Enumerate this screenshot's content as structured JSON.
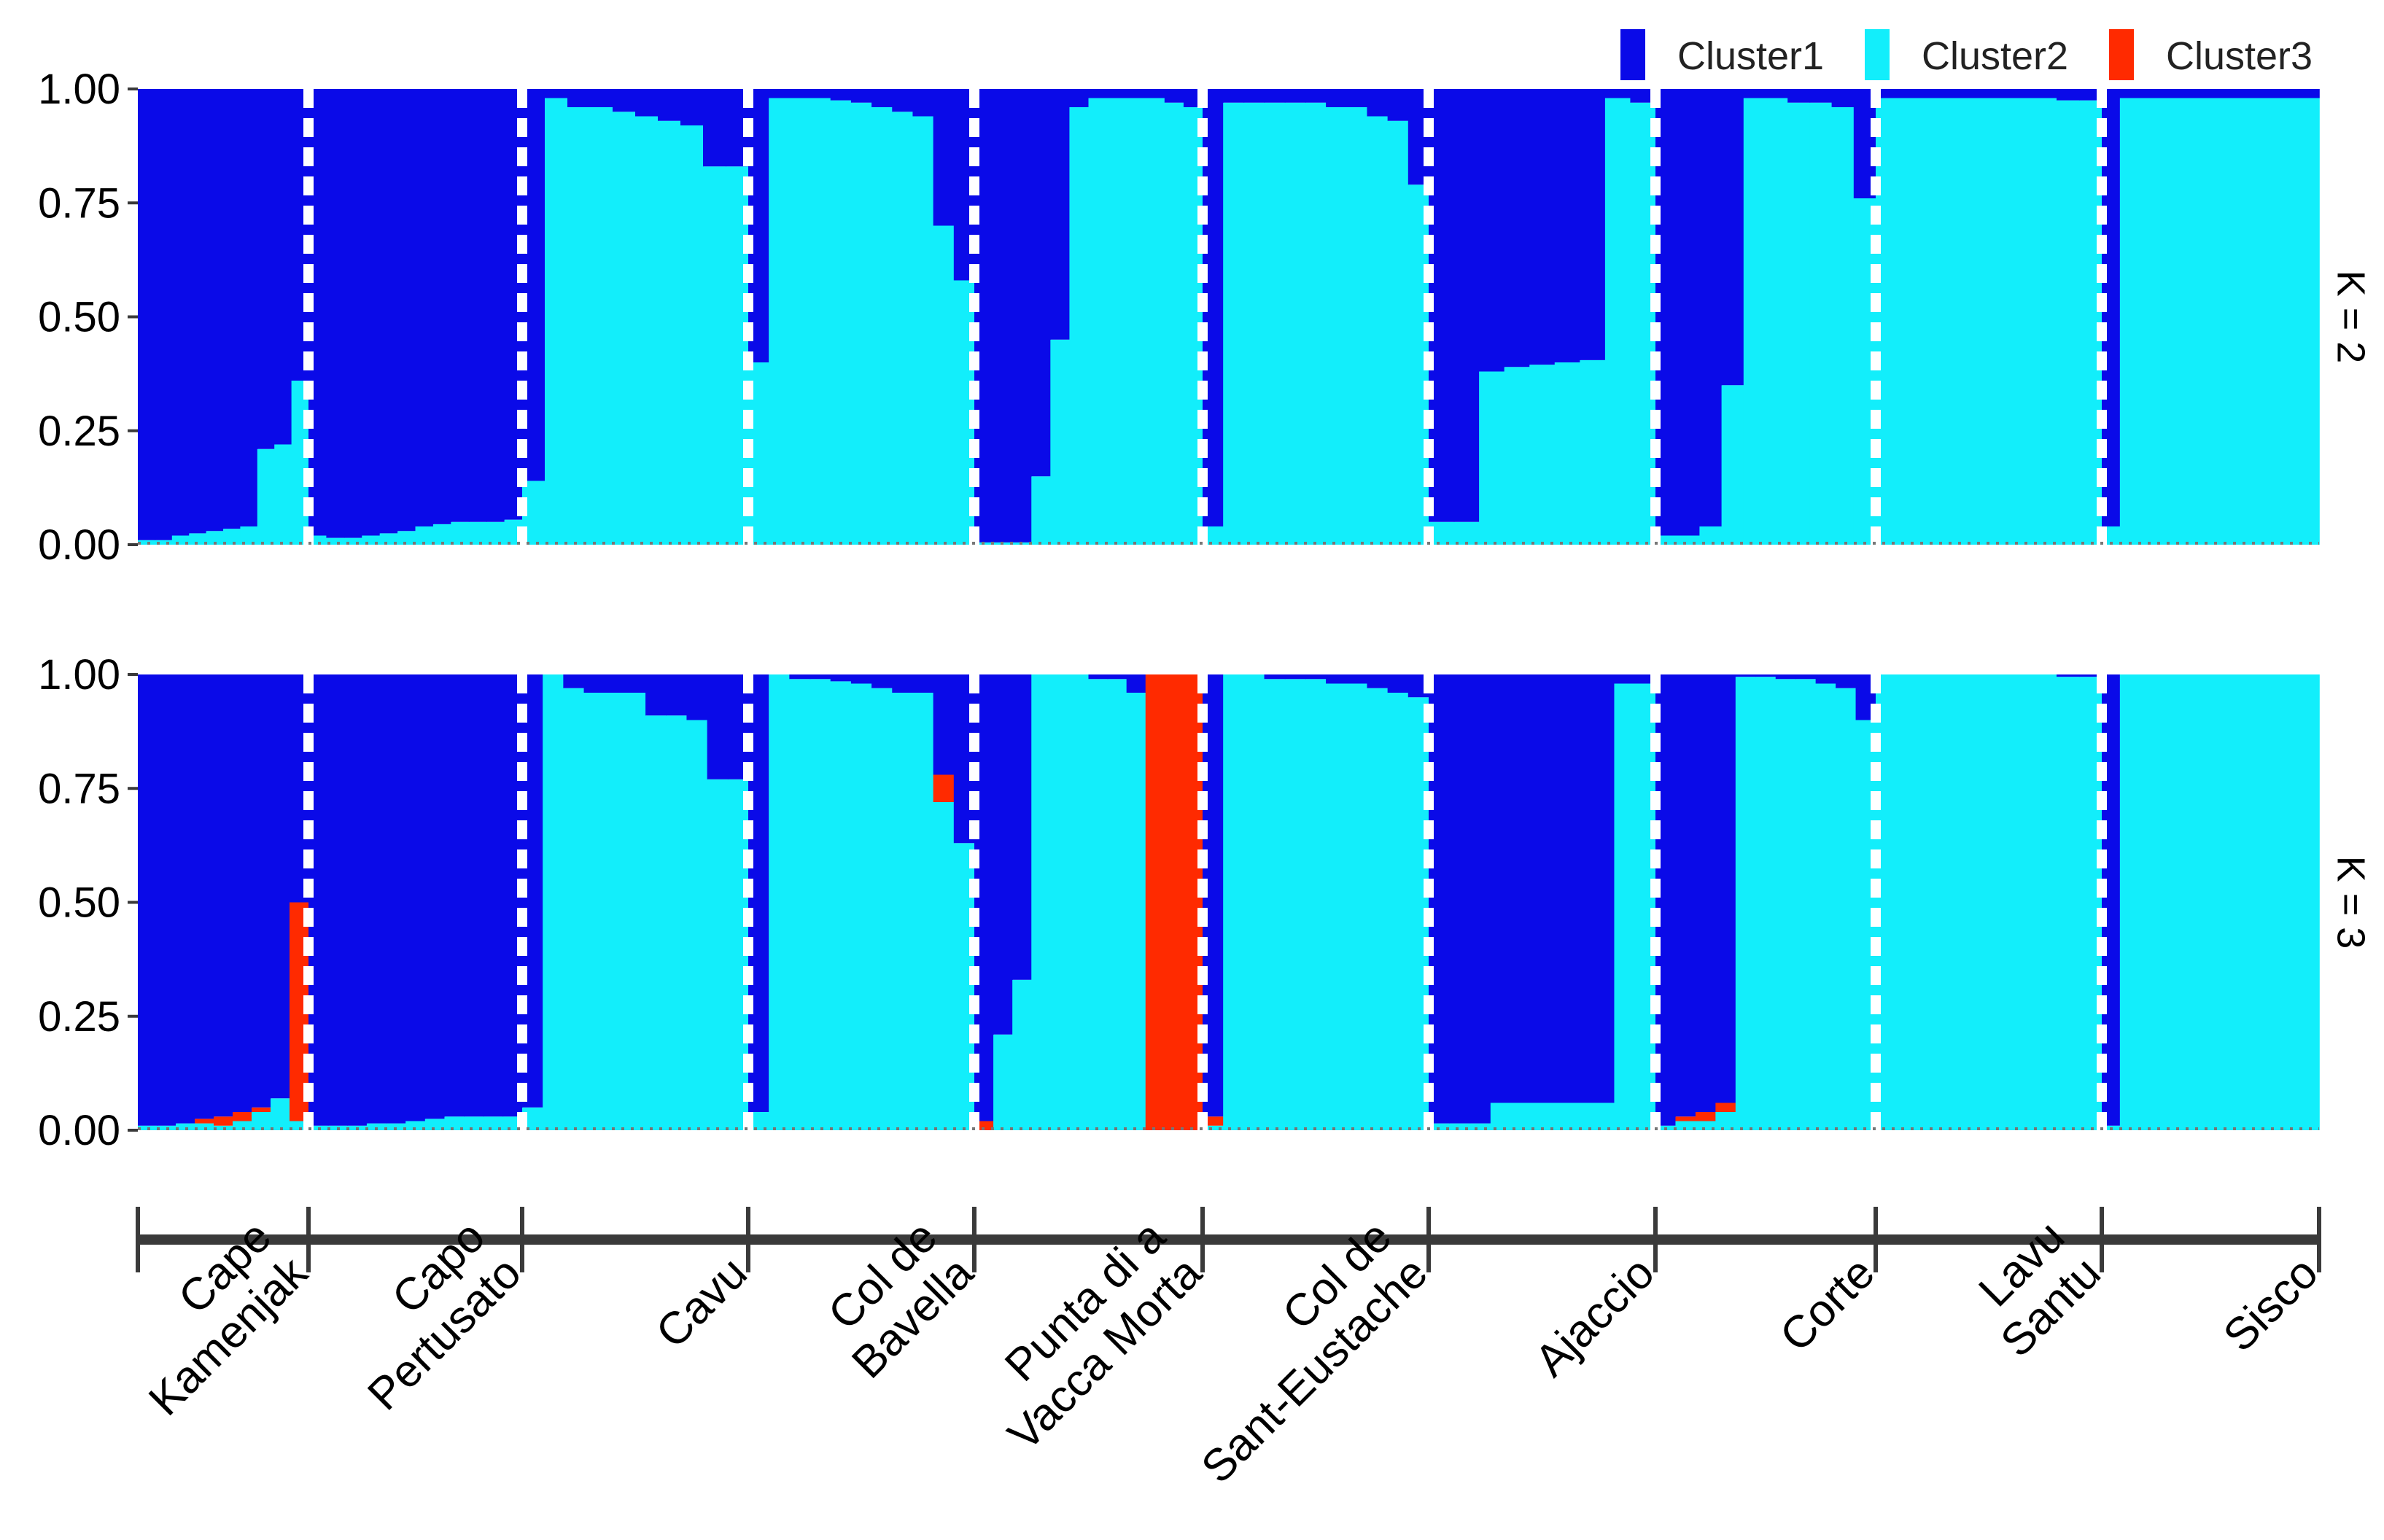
{
  "colors": {
    "Cluster1": "#0a0ae8",
    "Cluster2": "#12eefb",
    "Cluster3": "#ff2a00",
    "axis": "#3a3a3a",
    "text": "#000000",
    "separator": "#ffffff"
  },
  "legend": {
    "position": "top-right",
    "items": [
      "Cluster1",
      "Cluster2",
      "Cluster3"
    ]
  },
  "chart_data": {
    "type": "bar",
    "subtype": "stacked-admixture",
    "ylim": [
      0,
      1
    ],
    "yticks": [
      "0.00",
      "0.25",
      "0.50",
      "0.75",
      "1.00"
    ],
    "grid": false,
    "legend_position": "top-right",
    "populations": [
      {
        "name": "Cape Kamenjak",
        "label_lines": [
          "Cape",
          "Kamenjak"
        ]
      },
      {
        "name": "Capo Pertusato",
        "label_lines": [
          "Capo",
          "Pertusato"
        ]
      },
      {
        "name": "Cavu",
        "label_lines": [
          "Cavu"
        ]
      },
      {
        "name": "Col de Bavella",
        "label_lines": [
          "Col de",
          "Bavella"
        ]
      },
      {
        "name": "Punta di a Vacca Morta",
        "label_lines": [
          "Punta di a",
          "Vacca Morta"
        ]
      },
      {
        "name": "Col de Sant-Eustache",
        "label_lines": [
          "Col de",
          "Sant-Eustache"
        ]
      },
      {
        "name": "Ajaccio",
        "label_lines": [
          "Ajaccio"
        ]
      },
      {
        "name": "Corte",
        "label_lines": [
          "Corte"
        ]
      },
      {
        "name": "Lavu Santu",
        "label_lines": [
          "Lavu",
          "Santu"
        ]
      },
      {
        "name": "Sisco",
        "label_lines": [
          "Sisco"
        ]
      }
    ],
    "panels": [
      {
        "label": "K = 2",
        "series": [
          "Cluster1",
          "Cluster2"
        ],
        "individuals": [
          [
            [
              0.99,
              0.01
            ],
            [
              0.99,
              0.01
            ],
            [
              0.98,
              0.02
            ],
            [
              0.975,
              0.025
            ],
            [
              0.97,
              0.03
            ],
            [
              0.965,
              0.035
            ],
            [
              0.96,
              0.04
            ],
            [
              0.79,
              0.21
            ],
            [
              0.78,
              0.22
            ],
            [
              0.64,
              0.36
            ]
          ],
          [
            [
              0.98,
              0.02
            ],
            [
              0.985,
              0.015
            ],
            [
              0.985,
              0.015
            ],
            [
              0.98,
              0.02
            ],
            [
              0.975,
              0.025
            ],
            [
              0.97,
              0.03
            ],
            [
              0.96,
              0.04
            ],
            [
              0.955,
              0.045
            ],
            [
              0.95,
              0.05
            ],
            [
              0.95,
              0.05
            ],
            [
              0.95,
              0.05
            ],
            [
              0.945,
              0.055
            ]
          ],
          [
            [
              0.86,
              0.14
            ],
            [
              0.02,
              0.98
            ],
            [
              0.04,
              0.96
            ],
            [
              0.04,
              0.96
            ],
            [
              0.05,
              0.95
            ],
            [
              0.06,
              0.94
            ],
            [
              0.07,
              0.93
            ],
            [
              0.08,
              0.92
            ],
            [
              0.17,
              0.83
            ],
            [
              0.17,
              0.83
            ]
          ],
          [
            [
              0.6,
              0.4
            ],
            [
              0.02,
              0.98
            ],
            [
              0.02,
              0.98
            ],
            [
              0.02,
              0.98
            ],
            [
              0.025,
              0.975
            ],
            [
              0.03,
              0.97
            ],
            [
              0.04,
              0.96
            ],
            [
              0.05,
              0.95
            ],
            [
              0.06,
              0.94
            ],
            [
              0.3,
              0.7
            ],
            [
              0.42,
              0.58
            ]
          ],
          [
            [
              0.995,
              0.005
            ],
            [
              0.995,
              0.005
            ],
            [
              0.995,
              0.005
            ],
            [
              0.85,
              0.15
            ],
            [
              0.55,
              0.45
            ],
            [
              0.04,
              0.96
            ],
            [
              0.02,
              0.98
            ],
            [
              0.02,
              0.98
            ],
            [
              0.02,
              0.98
            ],
            [
              0.02,
              0.98
            ],
            [
              0.03,
              0.97
            ],
            [
              0.04,
              0.96
            ]
          ],
          [
            [
              0.96,
              0.04
            ],
            [
              0.03,
              0.97
            ],
            [
              0.03,
              0.97
            ],
            [
              0.03,
              0.97
            ],
            [
              0.03,
              0.97
            ],
            [
              0.03,
              0.97
            ],
            [
              0.04,
              0.96
            ],
            [
              0.04,
              0.96
            ],
            [
              0.06,
              0.94
            ],
            [
              0.07,
              0.93
            ],
            [
              0.21,
              0.79
            ]
          ],
          [
            [
              0.95,
              0.05
            ],
            [
              0.95,
              0.05
            ],
            [
              0.62,
              0.38
            ],
            [
              0.61,
              0.39
            ],
            [
              0.605,
              0.395
            ],
            [
              0.6,
              0.4
            ],
            [
              0.595,
              0.405
            ],
            [
              0.02,
              0.98
            ],
            [
              0.03,
              0.97
            ]
          ],
          [
            [
              0.98,
              0.02
            ],
            [
              0.98,
              0.02
            ],
            [
              0.96,
              0.04
            ],
            [
              0.65,
              0.35
            ],
            [
              0.02,
              0.98
            ],
            [
              0.02,
              0.98
            ],
            [
              0.03,
              0.97
            ],
            [
              0.03,
              0.97
            ],
            [
              0.04,
              0.96
            ],
            [
              0.24,
              0.76
            ]
          ],
          [
            [
              0.02,
              0.98
            ],
            [
              0.02,
              0.98
            ],
            [
              0.02,
              0.98
            ],
            [
              0.02,
              0.98
            ],
            [
              0.02,
              0.98
            ],
            [
              0.02,
              0.98
            ],
            [
              0.02,
              0.98
            ],
            [
              0.02,
              0.98
            ],
            [
              0.025,
              0.975
            ],
            [
              0.025,
              0.975
            ]
          ],
          [
            [
              0.96,
              0.04
            ],
            [
              0.02,
              0.98
            ],
            [
              0.02,
              0.98
            ],
            [
              0.02,
              0.98
            ],
            [
              0.02,
              0.98
            ],
            [
              0.02,
              0.98
            ],
            [
              0.02,
              0.98
            ],
            [
              0.02,
              0.98
            ],
            [
              0.02,
              0.98
            ],
            [
              0.02,
              0.98
            ],
            [
              0.02,
              0.98
            ],
            [
              0.02,
              0.98
            ]
          ]
        ]
      },
      {
        "label": "K = 3",
        "series": [
          "Cluster1",
          "Cluster2",
          "Cluster3"
        ],
        "individuals": [
          [
            [
              0.99,
              0.01,
              0.0
            ],
            [
              0.99,
              0.01,
              0.0
            ],
            [
              0.985,
              0.015,
              0.0
            ],
            [
              0.975,
              0.015,
              0.01
            ],
            [
              0.97,
              0.01,
              0.02
            ],
            [
              0.96,
              0.02,
              0.02
            ],
            [
              0.95,
              0.04,
              0.01
            ],
            [
              0.93,
              0.07,
              0.0
            ],
            [
              0.5,
              0.02,
              0.48
            ]
          ],
          [
            [
              0.99,
              0.01,
              0.0
            ],
            [
              0.99,
              0.01,
              0.0
            ],
            [
              0.99,
              0.01,
              0.0
            ],
            [
              0.985,
              0.015,
              0.0
            ],
            [
              0.985,
              0.015,
              0.0
            ],
            [
              0.98,
              0.02,
              0.0
            ],
            [
              0.975,
              0.025,
              0.0
            ],
            [
              0.97,
              0.03,
              0.0
            ],
            [
              0.97,
              0.03,
              0.0
            ],
            [
              0.97,
              0.03,
              0.0
            ],
            [
              0.97,
              0.03,
              0.0
            ]
          ],
          [
            [
              0.95,
              0.05,
              0.0
            ],
            [
              0.0,
              1.0,
              0.0
            ],
            [
              0.03,
              0.97,
              0.0
            ],
            [
              0.04,
              0.96,
              0.0
            ],
            [
              0.04,
              0.96,
              0.0
            ],
            [
              0.04,
              0.96,
              0.0
            ],
            [
              0.09,
              0.91,
              0.0
            ],
            [
              0.09,
              0.91,
              0.0
            ],
            [
              0.1,
              0.9,
              0.0
            ],
            [
              0.23,
              0.77,
              0.0
            ],
            [
              0.23,
              0.77,
              0.0
            ]
          ],
          [
            [
              0.96,
              0.04,
              0.0
            ],
            [
              0.0,
              1.0,
              0.0
            ],
            [
              0.01,
              0.99,
              0.0
            ],
            [
              0.01,
              0.99,
              0.0
            ],
            [
              0.015,
              0.985,
              0.0
            ],
            [
              0.02,
              0.98,
              0.0
            ],
            [
              0.03,
              0.97,
              0.0
            ],
            [
              0.04,
              0.96,
              0.0
            ],
            [
              0.04,
              0.96,
              0.0
            ],
            [
              0.22,
              0.72,
              0.06
            ],
            [
              0.37,
              0.63,
              0.0
            ]
          ],
          [
            [
              0.98,
              0.0,
              0.02
            ],
            [
              0.79,
              0.21,
              0.0
            ],
            [
              0.67,
              0.33,
              0.0
            ],
            [
              0.0,
              1.0,
              0.0
            ],
            [
              0.0,
              1.0,
              0.0
            ],
            [
              0.0,
              1.0,
              0.0
            ],
            [
              0.01,
              0.99,
              0.0
            ],
            [
              0.01,
              0.99,
              0.0
            ],
            [
              0.04,
              0.96,
              0.0
            ],
            [
              0.0,
              0.0,
              1.0
            ],
            [
              0.0,
              0.0,
              1.0
            ],
            [
              0.0,
              0.0,
              1.0
            ]
          ],
          [
            [
              0.97,
              0.01,
              0.02
            ],
            [
              0.0,
              1.0,
              0.0
            ],
            [
              0.0,
              1.0,
              0.0
            ],
            [
              0.01,
              0.99,
              0.0
            ],
            [
              0.01,
              0.99,
              0.0
            ],
            [
              0.01,
              0.99,
              0.0
            ],
            [
              0.02,
              0.98,
              0.0
            ],
            [
              0.02,
              0.98,
              0.0
            ],
            [
              0.03,
              0.97,
              0.0
            ],
            [
              0.04,
              0.96,
              0.0
            ],
            [
              0.05,
              0.95,
              0.0
            ]
          ],
          [
            [
              0.985,
              0.015,
              0.0
            ],
            [
              0.985,
              0.015,
              0.0
            ],
            [
              0.985,
              0.015,
              0.0
            ],
            [
              0.94,
              0.06,
              0.0
            ],
            [
              0.94,
              0.06,
              0.0
            ],
            [
              0.94,
              0.06,
              0.0
            ],
            [
              0.94,
              0.06,
              0.0
            ],
            [
              0.94,
              0.06,
              0.0
            ],
            [
              0.94,
              0.06,
              0.0
            ],
            [
              0.02,
              0.98,
              0.0
            ],
            [
              0.02,
              0.98,
              0.0
            ]
          ],
          [
            [
              0.99,
              0.01,
              0.0
            ],
            [
              0.97,
              0.02,
              0.01
            ],
            [
              0.96,
              0.02,
              0.02
            ],
            [
              0.94,
              0.04,
              0.02
            ],
            [
              0.005,
              0.995,
              0.0
            ],
            [
              0.005,
              0.995,
              0.0
            ],
            [
              0.01,
              0.99,
              0.0
            ],
            [
              0.01,
              0.99,
              0.0
            ],
            [
              0.02,
              0.98,
              0.0
            ],
            [
              0.03,
              0.97,
              0.0
            ],
            [
              0.1,
              0.9,
              0.0
            ]
          ],
          [
            [
              0.0,
              1.0,
              0.0
            ],
            [
              0.0,
              1.0,
              0.0
            ],
            [
              0.0,
              1.0,
              0.0
            ],
            [
              0.0,
              1.0,
              0.0
            ],
            [
              0.0,
              1.0,
              0.0
            ],
            [
              0.0,
              1.0,
              0.0
            ],
            [
              0.0,
              1.0,
              0.0
            ],
            [
              0.0,
              1.0,
              0.0
            ],
            [
              0.005,
              0.995,
              0.0
            ],
            [
              0.005,
              0.995,
              0.0
            ]
          ],
          [
            [
              0.99,
              0.01,
              0.0
            ],
            [
              0.0,
              1.0,
              0.0
            ],
            [
              0.0,
              1.0,
              0.0
            ],
            [
              0.0,
              1.0,
              0.0
            ],
            [
              0.0,
              1.0,
              0.0
            ],
            [
              0.0,
              1.0,
              0.0
            ],
            [
              0.0,
              1.0,
              0.0
            ],
            [
              0.0,
              1.0,
              0.0
            ],
            [
              0.0,
              1.0,
              0.0
            ],
            [
              0.0,
              1.0,
              0.0
            ],
            [
              0.0,
              1.0,
              0.0
            ],
            [
              0.0,
              1.0,
              0.0
            ]
          ]
        ]
      }
    ]
  }
}
